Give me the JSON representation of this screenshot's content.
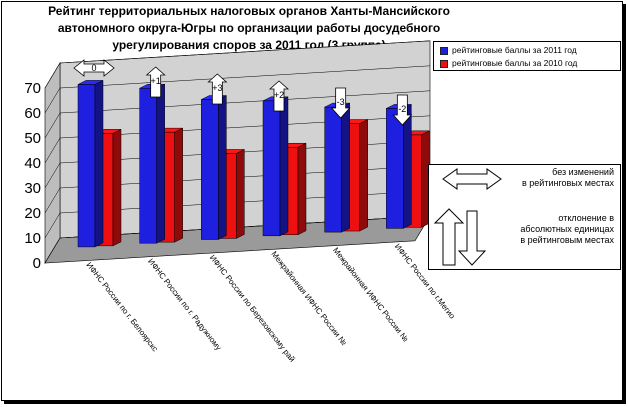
{
  "title_lines": [
    "Рейтинг территориальных налоговых органов Ханты-Мансийского",
    "автономного округа-Югры по организации работы досудебного",
    "урегулирования споров за 2011 год (3 группа)"
  ],
  "legend": [
    {
      "label": "рейтинговые баллы за 2011 год",
      "color": "#1f1fe0"
    },
    {
      "label": "рейтинговые баллы за 2010 год",
      "color": "#ee1010"
    }
  ],
  "note": {
    "no_change": "без изменений\nв рейтинговых местах",
    "deviation": "отклонение в\nабсолютных единицах\nв рейтинговым местах"
  },
  "chart_data": {
    "type": "bar",
    "title": "Рейтинг территориальных налоговых органов Ханты-Мансийского автономного округа-Югры по организации работы досудебного урегулирования споров за 2011 год (3 группа)",
    "categories": [
      "ИФНС России по г. Белоярскс",
      "ИФНС России по г. Радужному",
      "ИФНС России по Березовскому рай",
      "Межрайонная ИФНС России №",
      "Межрайонная ИФНС России №",
      "ИФНС России по г.Мегио"
    ],
    "series": [
      {
        "name": "рейтинговые баллы за 2011 год",
        "color": "#1f1fe0",
        "values": [
          65,
          62,
          56,
          54,
          50,
          48
        ]
      },
      {
        "name": "рейтинговые баллы за 2010 год",
        "color": "#ee1010",
        "values": [
          45,
          44,
          34,
          35,
          43,
          37
        ]
      }
    ],
    "rank_changes": [
      "0",
      "+1",
      "+3",
      "+2",
      "-3",
      "-2"
    ],
    "yticks": [
      "0",
      "10",
      "20",
      "30",
      "40",
      "50",
      "60",
      "70"
    ],
    "ylim": [
      0,
      70
    ],
    "grid": true,
    "style": "3d",
    "legend_position": "top-right"
  }
}
